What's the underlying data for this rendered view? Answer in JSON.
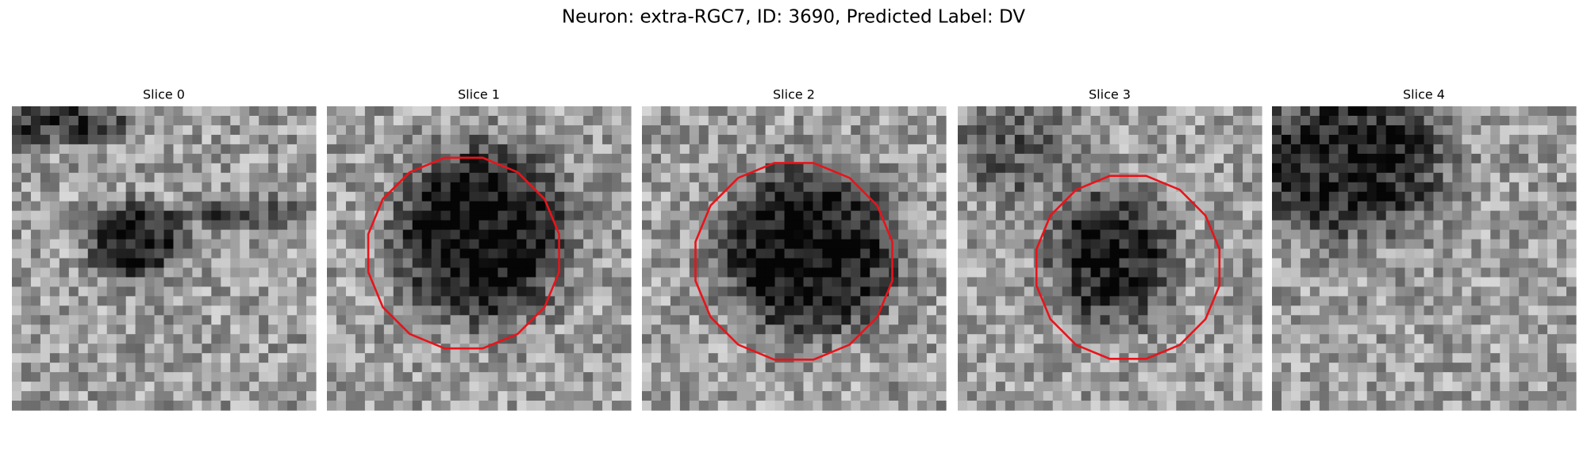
{
  "header": {
    "title": "Neuron: extra-RGC7, ID: 3690, Predicted Label: DV"
  },
  "panels": [
    {
      "title": "Slice 0"
    },
    {
      "title": "Slice 1"
    },
    {
      "title": "Slice 2"
    },
    {
      "title": "Slice 3"
    },
    {
      "title": "Slice 4"
    }
  ]
}
